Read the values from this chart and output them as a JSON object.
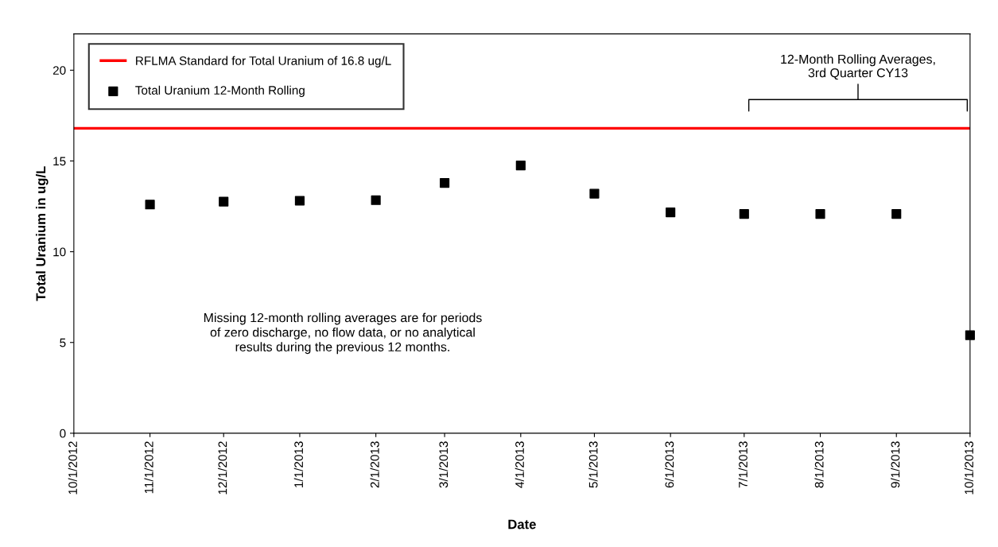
{
  "chart_data": {
    "type": "scatter",
    "xlabel": "Date",
    "ylabel": "Total Uranium in ug/L",
    "x": [
      "2012-11-01",
      "2012-12-01",
      "2013-01-01",
      "2013-02-01",
      "2013-03-01",
      "2013-04-01",
      "2013-05-01",
      "2013-06-01",
      "2013-07-01",
      "2013-08-01",
      "2013-09-01",
      "2013-10-01"
    ],
    "series": [
      {
        "name": "Total Uranium 12-Month Rolling",
        "color": "#000000",
        "values": [
          12.6,
          12.76,
          12.81,
          12.84,
          13.79,
          14.75,
          13.2,
          12.17,
          12.08,
          12.08,
          12.08,
          5.4
        ]
      }
    ],
    "marker": "square",
    "xlim": [
      "2012-10-01",
      "2013-10-01"
    ],
    "xticks": [
      {
        "value": "2012-10-01",
        "label": "10/1/2012"
      },
      {
        "value": "2012-11-01",
        "label": "11/1/2012"
      },
      {
        "value": "2012-12-01",
        "label": "12/1/2012"
      },
      {
        "value": "2013-01-01",
        "label": "1/1/2013"
      },
      {
        "value": "2013-02-01",
        "label": "2/1/2013"
      },
      {
        "value": "2013-03-01",
        "label": "3/1/2013"
      },
      {
        "value": "2013-04-01",
        "label": "4/1/2013"
      },
      {
        "value": "2013-05-01",
        "label": "5/1/2013"
      },
      {
        "value": "2013-06-01",
        "label": "6/1/2013"
      },
      {
        "value": "2013-07-01",
        "label": "7/1/2013"
      },
      {
        "value": "2013-08-01",
        "label": "8/1/2013"
      },
      {
        "value": "2013-09-01",
        "label": "9/1/2013"
      },
      {
        "value": "2013-10-01",
        "label": "10/1/2013"
      }
    ],
    "ylim": [
      0,
      22
    ],
    "yticks": [
      0,
      5,
      10,
      15,
      20
    ],
    "ref_lines": [
      {
        "axis": "y",
        "value": 16.8,
        "label": "RFLMA Standard for Total Uranium of 16.8 ug/L",
        "color": "#ff0000"
      }
    ],
    "annotations": [
      "12-Month Rolling Averages,\n3rd Quarter CY13",
      "Missing 12-month rolling averages are for periods\nof zero discharge, no flow data, or no analytical\nresults during the previous 12 months."
    ],
    "grid": false,
    "legend": "top left"
  }
}
